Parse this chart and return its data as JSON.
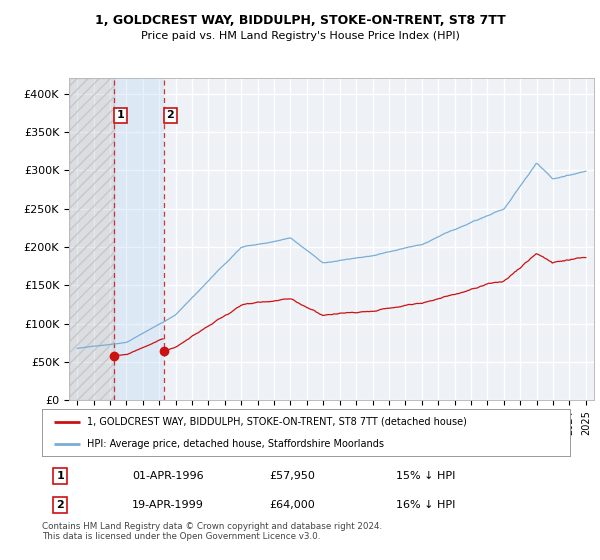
{
  "title": "1, GOLDCREST WAY, BIDDULPH, STOKE-ON-TRENT, ST8 7TT",
  "subtitle": "Price paid vs. HM Land Registry's House Price Index (HPI)",
  "ylim": [
    0,
    420000
  ],
  "yticks": [
    0,
    50000,
    100000,
    150000,
    200000,
    250000,
    300000,
    350000,
    400000
  ],
  "ytick_labels": [
    "£0",
    "£50K",
    "£100K",
    "£150K",
    "£200K",
    "£250K",
    "£300K",
    "£350K",
    "£400K"
  ],
  "hpi_color": "#7aaed6",
  "price_color": "#cc1111",
  "sale1_date": 1996.25,
  "sale1_price": 57950,
  "sale1_label": "1",
  "sale2_date": 1999.29,
  "sale2_price": 64000,
  "sale2_label": "2",
  "legend_line1": "1, GOLDCREST WAY, BIDDULPH, STOKE-ON-TRENT, ST8 7TT (detached house)",
  "legend_line2": "HPI: Average price, detached house, Staffordshire Moorlands",
  "table_row1": [
    "1",
    "01-APR-1996",
    "£57,950",
    "15% ↓ HPI"
  ],
  "table_row2": [
    "2",
    "19-APR-1999",
    "£64,000",
    "16% ↓ HPI"
  ],
  "footnote": "Contains HM Land Registry data © Crown copyright and database right 2024.\nThis data is licensed under the Open Government Licence v3.0.",
  "xmin": 1993.5,
  "xmax": 2025.5,
  "background_color": "#ffffff",
  "plot_bg_color": "#eef2f7"
}
